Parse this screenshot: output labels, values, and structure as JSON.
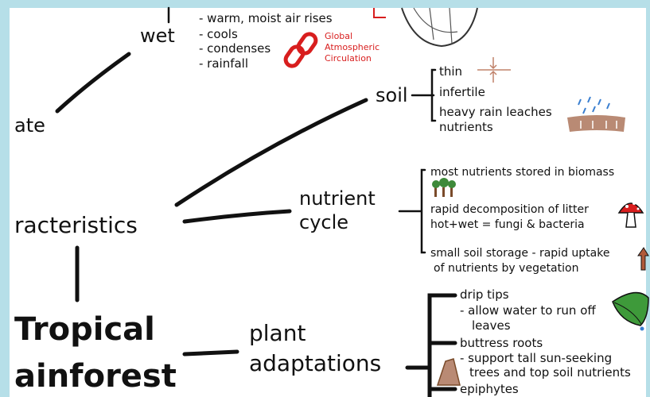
{
  "climate": {
    "label": "ate",
    "wet": {
      "label": "wet",
      "points": [
        "- warm, moist air rises",
        "- cools",
        "- condenses",
        "- rainfall"
      ],
      "link": [
        "Global",
        "Atmospheric",
        "Circulation"
      ]
    }
  },
  "characteristics": "racteristics",
  "title": [
    "Tropical",
    "ainforest"
  ],
  "soil": {
    "label": "soil",
    "points": [
      "thin",
      "infertile",
      "heavy rain leaches",
      "nutrients"
    ]
  },
  "nutrient_cycle": {
    "label": [
      "nutrient",
      "cycle"
    ],
    "points": [
      "most nutrients stored in biomass",
      "rapid decomposition of litter",
      "hot+wet = fungi & bacteria",
      "small soil storage - rapid uptake",
      "of nutrients by vegetation"
    ]
  },
  "plant_adaptations": {
    "label": [
      "plant",
      "adaptations"
    ],
    "points": [
      "drip tips",
      "- allow water to run off",
      "leaves",
      "buttress roots",
      "- support tall sun-seeking",
      "trees and top soil nutrients",
      "epiphytes"
    ]
  }
}
